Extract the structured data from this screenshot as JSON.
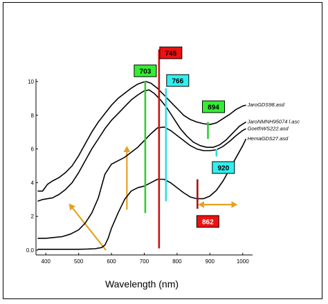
{
  "chart_data": {
    "type": "line",
    "xlabel": "Wavelength (nm)",
    "ylabel": "",
    "xlim": [
      370,
      1030
    ],
    "ylim": [
      0,
      10
    ],
    "grid": false,
    "x_ticks": [
      400,
      500,
      600,
      700,
      800,
      900,
      1000
    ],
    "y_ticks": [
      0.0,
      2,
      4,
      6,
      8,
      10
    ],
    "y_tick_labels": [
      "0.0",
      "2",
      "4",
      "6",
      "8",
      "10"
    ],
    "series": [
      {
        "name": "JaroGDS98.asd",
        "x": [
          375,
          390,
          405,
          420,
          440,
          460,
          480,
          500,
          520,
          540,
          560,
          580,
          600,
          620,
          640,
          660,
          680,
          695,
          705,
          720,
          740,
          760,
          780,
          800,
          820,
          840,
          860,
          880,
          900,
          920,
          940,
          960,
          980,
          1000,
          1010
        ],
        "y": [
          3.5,
          3.5,
          3.9,
          4.1,
          4.3,
          4.6,
          5.0,
          5.6,
          6.3,
          7.0,
          7.6,
          8.1,
          8.6,
          9.0,
          9.3,
          9.6,
          9.85,
          9.95,
          10.0,
          9.9,
          9.6,
          9.2,
          8.8,
          8.4,
          8.0,
          7.75,
          7.6,
          7.5,
          7.45,
          7.55,
          7.8,
          8.05,
          8.35,
          8.55,
          8.6
        ]
      },
      {
        "name": "JaroNMNH95074 l.asc",
        "x": [
          375,
          390,
          405,
          420,
          440,
          460,
          480,
          500,
          520,
          540,
          560,
          580,
          600,
          620,
          640,
          660,
          680,
          700,
          715,
          730,
          750,
          770,
          790,
          810,
          830,
          850,
          870,
          890,
          910,
          930,
          950,
          970,
          990,
          1010
        ],
        "y": [
          2.9,
          3.0,
          3.05,
          3.1,
          3.3,
          3.6,
          4.0,
          4.6,
          5.3,
          6.0,
          6.6,
          7.2,
          7.7,
          8.1,
          8.5,
          8.9,
          9.2,
          9.45,
          9.5,
          9.3,
          8.9,
          8.4,
          7.8,
          7.2,
          6.75,
          6.4,
          6.2,
          6.1,
          6.1,
          6.25,
          6.55,
          6.95,
          7.35,
          7.6
        ]
      },
      {
        "name": "GoethWS222.asd",
        "x": [
          375,
          400,
          425,
          450,
          475,
          500,
          520,
          540,
          560,
          580,
          600,
          620,
          640,
          660,
          680,
          700,
          720,
          740,
          760,
          780,
          800,
          820,
          840,
          860,
          880,
          900,
          920,
          940,
          960,
          980,
          1000,
          1010
        ],
        "y": [
          0.7,
          0.7,
          0.75,
          0.8,
          0.95,
          1.2,
          1.6,
          2.2,
          3.1,
          4.5,
          5.1,
          5.3,
          5.5,
          5.8,
          6.1,
          6.5,
          6.9,
          7.25,
          7.3,
          7.1,
          6.8,
          6.5,
          6.2,
          6.0,
          5.9,
          5.9,
          5.95,
          6.15,
          6.45,
          6.8,
          7.1,
          7.2
        ]
      },
      {
        "name": "HemaGDS27.asd",
        "x": [
          375,
          400,
          425,
          450,
          475,
          500,
          525,
          550,
          570,
          580,
          590,
          600,
          620,
          640,
          660,
          680,
          700,
          720,
          740,
          760,
          780,
          800,
          820,
          840,
          860,
          880,
          900,
          920,
          940,
          960,
          980,
          1000,
          1010
        ],
        "y": [
          0.05,
          0.05,
          0.05,
          0.05,
          0.05,
          0.05,
          0.06,
          0.08,
          0.15,
          0.3,
          0.7,
          1.3,
          2.2,
          3.0,
          3.5,
          3.7,
          3.8,
          4.0,
          4.2,
          4.2,
          4.0,
          3.7,
          3.4,
          3.15,
          3.05,
          3.05,
          3.2,
          3.55,
          4.1,
          4.8,
          5.5,
          6.2,
          6.6
        ]
      }
    ],
    "annotations": {
      "markers": [
        {
          "label": "703",
          "x": 703,
          "line_from": 2.2,
          "line_to": 10.0,
          "color": "#33cc33",
          "box": "#33ee33",
          "text_color": "#000000"
        },
        {
          "label": "745",
          "x": 745,
          "line_from": 0.1,
          "line_to": 11.9,
          "color": "#cc1111",
          "box": "#ee1111",
          "text_color": "#000000"
        },
        {
          "label": "766",
          "x": 766,
          "line_from": 2.9,
          "line_to": 9.6,
          "color": "#33dddd",
          "box": "#33eeee",
          "text_color": "#000000"
        },
        {
          "label": "894",
          "x": 894,
          "line_from": 6.6,
          "line_to": 7.6,
          "color": "#33cc33",
          "box": "#33ee33",
          "text_color": "#000000"
        },
        {
          "label": "920",
          "x": 920,
          "line_from": 5.55,
          "line_to": 6.0,
          "color": "#33dddd",
          "box": "#33eeee",
          "text_color": "#000000"
        },
        {
          "label": "862",
          "x": 862,
          "line_from": 2.45,
          "line_to": 4.2,
          "color": "#aa1111",
          "box": "#ee1111",
          "text_color": "#ffffff"
        }
      ],
      "arrow_color": "#e8a020",
      "arrows": [
        {
          "from": [
            583,
            0.0
          ],
          "to": [
            473,
            2.7
          ],
          "head_from": false,
          "head_to": true
        },
        {
          "from": [
            647,
            2.4
          ],
          "to": [
            647,
            6.1
          ],
          "head_from": false,
          "head_to": true
        },
        {
          "from": [
            868,
            2.7
          ],
          "to": [
            980,
            2.7
          ],
          "head_from": true,
          "head_to": true
        }
      ]
    }
  }
}
